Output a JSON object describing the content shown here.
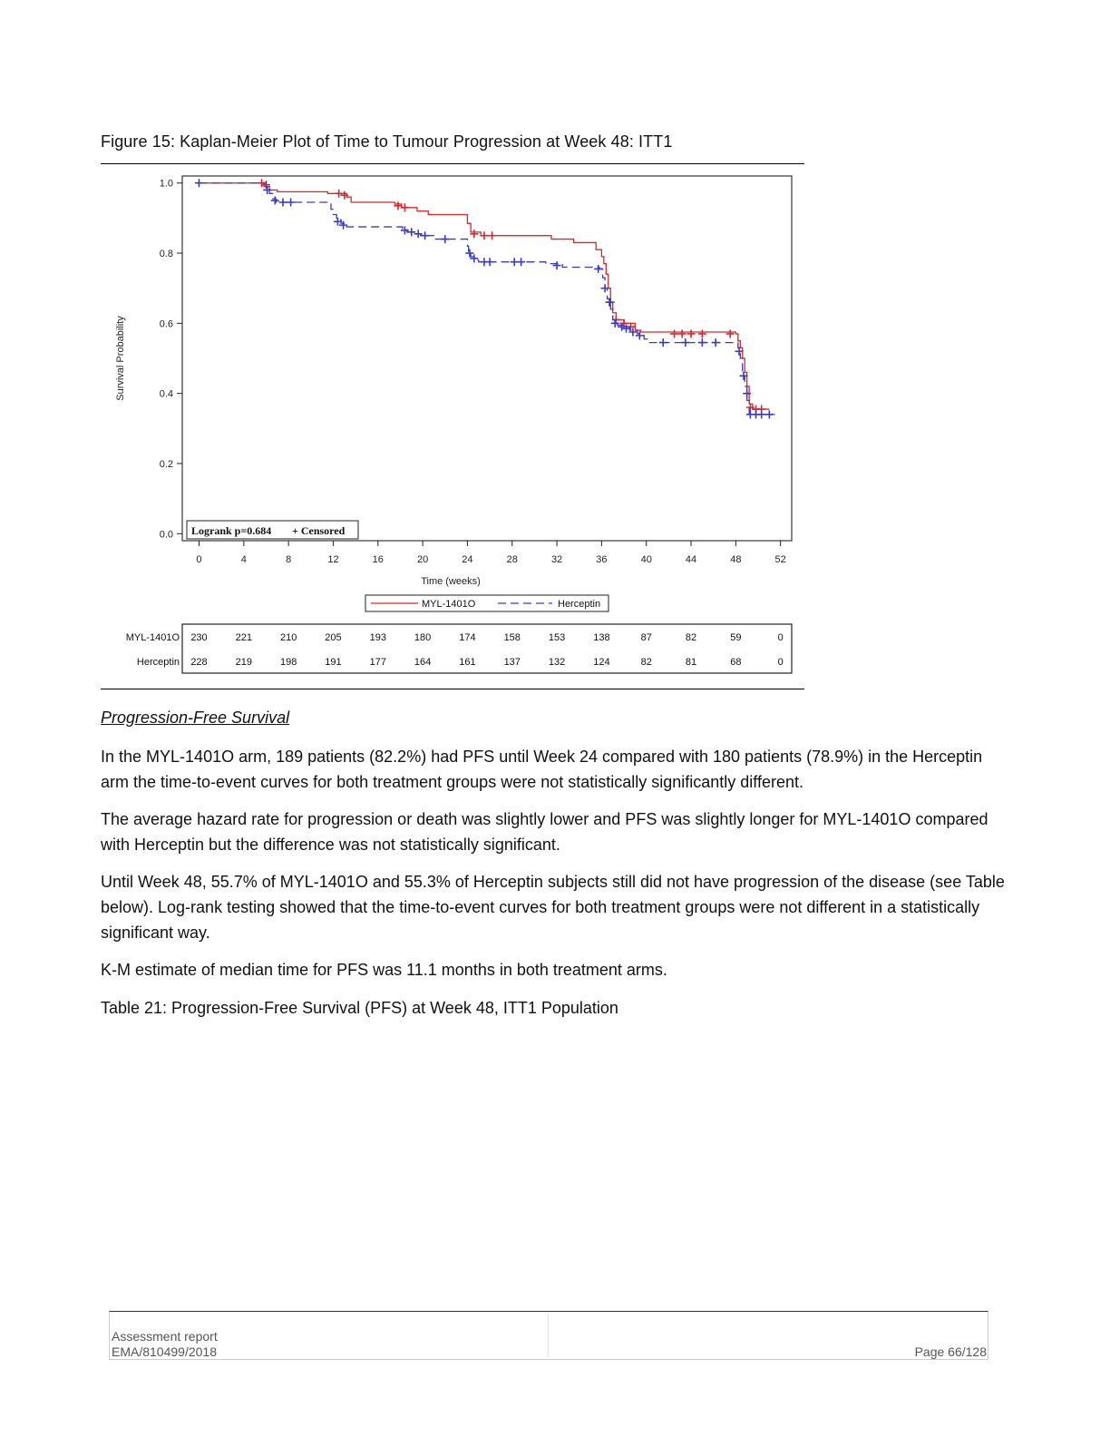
{
  "figure": {
    "caption": "Figure 15: Kaplan-Meier Plot of Time to Tumour Progression at Week 48: ITT1"
  },
  "chart_data": {
    "type": "line",
    "subtype": "kaplan-meier step plot",
    "ylabel": "Survival Probability",
    "xlabel": "Time (weeks)",
    "xlim": [
      -1.5,
      53
    ],
    "ylim": [
      -0.02,
      1.02
    ],
    "xticks": [
      0,
      4,
      8,
      12,
      16,
      20,
      24,
      28,
      32,
      36,
      40,
      44,
      48,
      52
    ],
    "yticks": [
      "0.0",
      "0.2",
      "0.4",
      "0.6",
      "0.8",
      "1.0"
    ],
    "annotation": {
      "logrank": "Logrank p=0.684",
      "censored": "+ Censored"
    },
    "legend": {
      "placement": "bottom-center",
      "entries": [
        "MYL-1401O",
        "Herceptin"
      ]
    },
    "series": [
      {
        "name": "MYL-1401O",
        "color": "#d9262b",
        "dash": "solid",
        "steps": [
          [
            0,
            1.0
          ],
          [
            5.8,
            0.99
          ],
          [
            6.3,
            0.98
          ],
          [
            7.0,
            0.975
          ],
          [
            11.5,
            0.97
          ],
          [
            13.2,
            0.96
          ],
          [
            13.6,
            0.945
          ],
          [
            17.5,
            0.94
          ],
          [
            18.1,
            0.93
          ],
          [
            19.5,
            0.92
          ],
          [
            20.5,
            0.91
          ],
          [
            24.0,
            0.885
          ],
          [
            24.3,
            0.86
          ],
          [
            25.2,
            0.85
          ],
          [
            31.5,
            0.84
          ],
          [
            33.5,
            0.83
          ],
          [
            35.5,
            0.81
          ],
          [
            36.0,
            0.79
          ],
          [
            36.2,
            0.77
          ],
          [
            36.4,
            0.74
          ],
          [
            36.6,
            0.7
          ],
          [
            36.8,
            0.66
          ],
          [
            37.0,
            0.63
          ],
          [
            37.3,
            0.61
          ],
          [
            38.0,
            0.6
          ],
          [
            39.0,
            0.58
          ],
          [
            39.5,
            0.575
          ],
          [
            48.0,
            0.57
          ],
          [
            48.2,
            0.55
          ],
          [
            48.4,
            0.53
          ],
          [
            48.6,
            0.5
          ],
          [
            48.8,
            0.46
          ],
          [
            49.0,
            0.42
          ],
          [
            49.2,
            0.37
          ],
          [
            49.5,
            0.355
          ],
          [
            51.0,
            0.355
          ]
        ],
        "censored": [
          [
            5.6,
            1.0
          ],
          [
            6.0,
            0.995
          ],
          [
            12.5,
            0.97
          ],
          [
            13.0,
            0.965
          ],
          [
            17.8,
            0.935
          ],
          [
            18.4,
            0.93
          ],
          [
            24.6,
            0.855
          ],
          [
            25.5,
            0.85
          ],
          [
            26.2,
            0.85
          ],
          [
            36.8,
            0.66
          ],
          [
            37.3,
            0.61
          ],
          [
            38.0,
            0.6
          ],
          [
            38.6,
            0.59
          ],
          [
            42.5,
            0.57
          ],
          [
            43.2,
            0.57
          ],
          [
            44.0,
            0.57
          ],
          [
            45.0,
            0.57
          ],
          [
            47.5,
            0.57
          ],
          [
            49.3,
            0.36
          ],
          [
            49.8,
            0.355
          ],
          [
            50.3,
            0.355
          ]
        ]
      },
      {
        "name": "Herceptin",
        "color": "#3a3ac4",
        "dash": "dashed",
        "steps": [
          [
            0,
            1.0
          ],
          [
            6.0,
            0.985
          ],
          [
            6.3,
            0.97
          ],
          [
            6.6,
            0.955
          ],
          [
            6.9,
            0.945
          ],
          [
            11.6,
            0.94
          ],
          [
            11.8,
            0.925
          ],
          [
            12.0,
            0.91
          ],
          [
            12.3,
            0.895
          ],
          [
            12.7,
            0.885
          ],
          [
            13.2,
            0.875
          ],
          [
            18.2,
            0.87
          ],
          [
            18.6,
            0.86
          ],
          [
            19.2,
            0.855
          ],
          [
            19.8,
            0.85
          ],
          [
            21.0,
            0.84
          ],
          [
            24.0,
            0.82
          ],
          [
            24.1,
            0.8
          ],
          [
            24.3,
            0.79
          ],
          [
            24.6,
            0.78
          ],
          [
            25.0,
            0.775
          ],
          [
            31.0,
            0.77
          ],
          [
            32.5,
            0.76
          ],
          [
            35.8,
            0.755
          ],
          [
            36.1,
            0.73
          ],
          [
            36.3,
            0.7
          ],
          [
            36.5,
            0.67
          ],
          [
            36.8,
            0.64
          ],
          [
            37.0,
            0.61
          ],
          [
            37.4,
            0.595
          ],
          [
            38.0,
            0.59
          ],
          [
            38.5,
            0.58
          ],
          [
            39.2,
            0.57
          ],
          [
            39.8,
            0.555
          ],
          [
            40.2,
            0.545
          ],
          [
            48.0,
            0.545
          ],
          [
            48.2,
            0.53
          ],
          [
            48.4,
            0.5
          ],
          [
            48.6,
            0.45
          ],
          [
            48.8,
            0.42
          ],
          [
            49.0,
            0.38
          ],
          [
            49.2,
            0.34
          ],
          [
            51.5,
            0.34
          ]
        ],
        "censored": [
          [
            0,
            1.0
          ],
          [
            6.1,
            0.98
          ],
          [
            6.8,
            0.95
          ],
          [
            7.5,
            0.945
          ],
          [
            8.2,
            0.945
          ],
          [
            12.4,
            0.89
          ],
          [
            12.9,
            0.88
          ],
          [
            18.4,
            0.865
          ],
          [
            19.0,
            0.86
          ],
          [
            19.6,
            0.855
          ],
          [
            20.2,
            0.85
          ],
          [
            22.0,
            0.84
          ],
          [
            24.2,
            0.8
          ],
          [
            24.6,
            0.785
          ],
          [
            25.5,
            0.775
          ],
          [
            26.0,
            0.775
          ],
          [
            28.2,
            0.775
          ],
          [
            28.8,
            0.775
          ],
          [
            32.0,
            0.765
          ],
          [
            35.7,
            0.755
          ],
          [
            36.3,
            0.7
          ],
          [
            36.7,
            0.66
          ],
          [
            37.2,
            0.6
          ],
          [
            37.8,
            0.59
          ],
          [
            38.2,
            0.585
          ],
          [
            38.8,
            0.575
          ],
          [
            39.4,
            0.565
          ],
          [
            41.5,
            0.545
          ],
          [
            43.5,
            0.545
          ],
          [
            45.0,
            0.545
          ],
          [
            46.2,
            0.545
          ],
          [
            48.3,
            0.52
          ],
          [
            48.7,
            0.45
          ],
          [
            49.0,
            0.4
          ],
          [
            49.3,
            0.34
          ],
          [
            49.8,
            0.34
          ],
          [
            50.3,
            0.34
          ],
          [
            51.0,
            0.34
          ]
        ]
      }
    ],
    "at_risk": {
      "times": [
        0,
        4,
        8,
        12,
        16,
        20,
        24,
        28,
        32,
        36,
        40,
        44,
        48,
        52
      ],
      "rows": [
        {
          "label": "MYL-1401O",
          "values": [
            "230",
            "221",
            "210",
            "205",
            "193",
            "180",
            "174",
            "158",
            "153",
            "138",
            "87",
            "82",
            "59",
            "0"
          ]
        },
        {
          "label": "Herceptin",
          "values": [
            "228",
            "219",
            "198",
            "191",
            "177",
            "164",
            "161",
            "137",
            "132",
            "124",
            "82",
            "81",
            "68",
            "0"
          ]
        }
      ]
    }
  },
  "body": {
    "section_heading": "Progression-Free Survival",
    "paragraphs": [
      "In the MYL-1401O arm, 189 patients (82.2%) had PFS until Week 24 compared with 180 patients (78.9%) in the Herceptin arm the time-to-event curves for both treatment groups were not statistically significantly different.",
      "The average hazard rate for progression or death was slightly lower and PFS was slightly longer for MYL-1401O compared with Herceptin but the difference was not statistically significant.",
      "Until Week 48, 55.7% of MYL-1401O and 55.3% of Herceptin subjects still did not have progression of the disease (see Table below). Log-rank testing showed that the time-to-event curves for both treatment groups were not different in a statistically significant way.",
      "K-M estimate of median time for PFS was 11.1 months in both treatment arms.",
      "Table 21: Progression-Free Survival (PFS) at Week 48, ITT1 Population"
    ]
  },
  "footer": {
    "doc_type": "Assessment report",
    "doc_ref": "EMA/810499/2018",
    "page": "Page 66/128"
  }
}
